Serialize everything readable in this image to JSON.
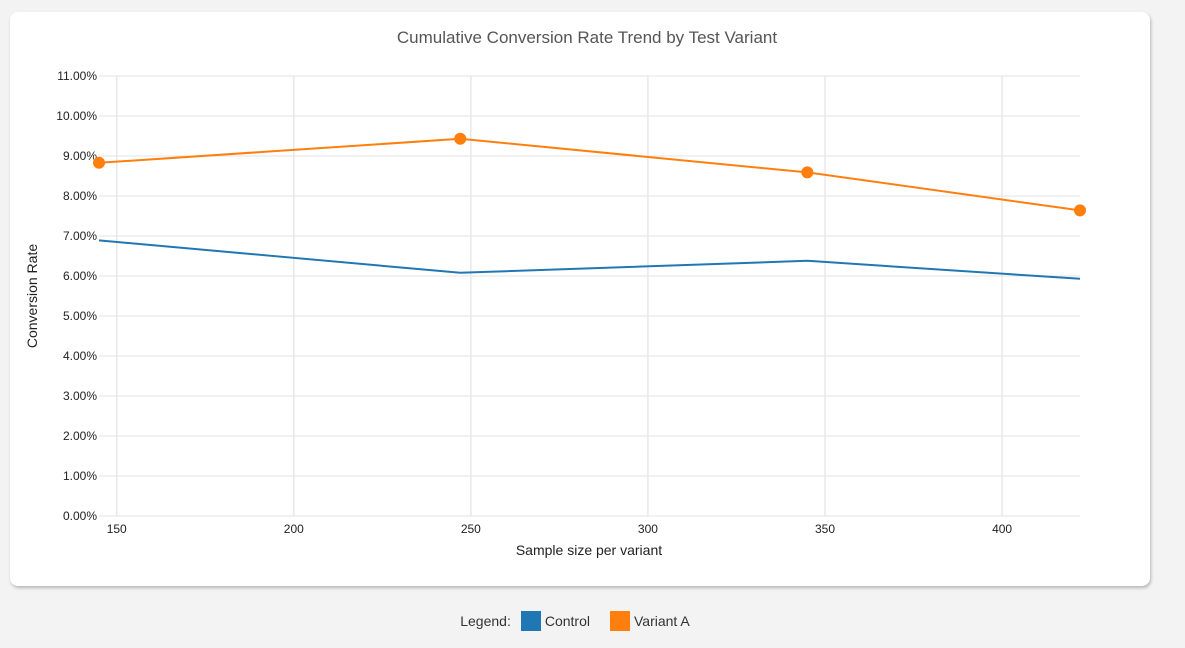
{
  "chart_data": {
    "type": "line",
    "title": "Cumulative Conversion Rate Trend by Test Variant",
    "xlabel": "Sample size per variant",
    "ylabel": "Conversion Rate",
    "xlim": [
      145,
      422
    ],
    "ylim": [
      0,
      11
    ],
    "xticks": [
      150,
      200,
      250,
      300,
      350,
      400
    ],
    "yticks": [
      "0.00%",
      "1.00%",
      "2.00%",
      "3.00%",
      "4.00%",
      "5.00%",
      "6.00%",
      "7.00%",
      "8.00%",
      "9.00%",
      "10.00%",
      "11.00%"
    ],
    "grid": true,
    "x": [
      145,
      247,
      345,
      422
    ],
    "series": [
      {
        "name": "Control",
        "color": "#1f77b4",
        "markers": false,
        "values": [
          6.89,
          6.08,
          6.38,
          5.93
        ]
      },
      {
        "name": "Variant A",
        "color": "#ff7f0e",
        "markers": true,
        "values": [
          8.83,
          9.43,
          8.59,
          7.64
        ]
      }
    ],
    "legend_position": "bottom"
  },
  "legend": {
    "label": "Legend:"
  }
}
